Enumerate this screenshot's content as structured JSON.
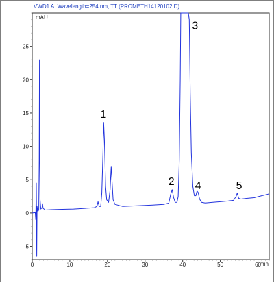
{
  "chart_data": {
    "type": "line",
    "title": "VWD1 A, Wavelength=254 nm, TT (PROMETH14120102.D)",
    "ylabel": "mAU",
    "xlabel": "min",
    "xlim": [
      0,
      63
    ],
    "ylim": [
      -7,
      30
    ],
    "x_ticks": [
      0,
      10,
      20,
      30,
      40,
      50,
      60
    ],
    "y_ticks": [
      -5,
      0,
      5,
      10,
      15,
      20,
      25
    ],
    "grid": false,
    "series": [
      {
        "color": "#2233dd",
        "points": [
          [
            0.0,
            0.0
          ],
          [
            0.8,
            0.05
          ],
          [
            0.95,
            -1.0
          ],
          [
            1.0,
            1.5
          ],
          [
            1.05,
            -5.5
          ],
          [
            1.1,
            4.5
          ],
          [
            1.2,
            -6.5
          ],
          [
            1.3,
            1.0
          ],
          [
            1.45,
            0.3
          ],
          [
            1.6,
            0.3
          ],
          [
            1.75,
            0.5
          ],
          [
            1.85,
            8.0
          ],
          [
            1.93,
            23.0
          ],
          [
            2.0,
            10.0
          ],
          [
            2.1,
            2.0
          ],
          [
            2.3,
            0.6
          ],
          [
            2.6,
            0.8
          ],
          [
            2.75,
            1.4
          ],
          [
            2.9,
            0.7
          ],
          [
            3.5,
            0.45
          ],
          [
            5,
            0.5
          ],
          [
            8,
            0.55
          ],
          [
            11,
            0.6
          ],
          [
            14,
            0.7
          ],
          [
            16.5,
            0.8
          ],
          [
            17.2,
            1.0
          ],
          [
            17.5,
            1.7
          ],
          [
            17.8,
            1.0
          ],
          [
            18.2,
            1.0
          ],
          [
            18.5,
            3.0
          ],
          [
            18.8,
            9.0
          ],
          [
            19.0,
            13.6
          ],
          [
            19.2,
            11.0
          ],
          [
            19.5,
            4.0
          ],
          [
            19.8,
            2.0
          ],
          [
            20.3,
            1.6
          ],
          [
            20.7,
            3.5
          ],
          [
            21.0,
            7.0
          ],
          [
            21.2,
            5.0
          ],
          [
            21.5,
            2.0
          ],
          [
            22.0,
            1.3
          ],
          [
            24,
            1.0
          ],
          [
            28,
            1.1
          ],
          [
            32,
            1.2
          ],
          [
            35,
            1.3
          ],
          [
            36.3,
            1.5
          ],
          [
            36.8,
            2.8
          ],
          [
            37.2,
            3.5
          ],
          [
            37.6,
            2.3
          ],
          [
            38.0,
            1.6
          ],
          [
            38.5,
            1.6
          ],
          [
            38.8,
            2.5
          ],
          [
            39.1,
            8.0
          ],
          [
            39.35,
            20.0
          ],
          [
            39.5,
            30.5
          ],
          [
            40.5,
            31.0
          ],
          [
            41.5,
            31.0
          ],
          [
            41.75,
            29.0
          ],
          [
            42.0,
            18.0
          ],
          [
            42.3,
            9.0
          ],
          [
            42.7,
            4.0
          ],
          [
            43.1,
            2.6
          ],
          [
            43.5,
            2.6
          ],
          [
            43.8,
            3.3
          ],
          [
            44.1,
            3.1
          ],
          [
            44.5,
            2.1
          ],
          [
            45.0,
            1.6
          ],
          [
            46,
            1.5
          ],
          [
            48,
            1.6
          ],
          [
            50,
            1.7
          ],
          [
            52,
            1.8
          ],
          [
            53.5,
            1.9
          ],
          [
            54.2,
            2.5
          ],
          [
            54.5,
            3.0
          ],
          [
            54.9,
            2.2
          ],
          [
            55.5,
            2.1
          ],
          [
            57,
            2.2
          ],
          [
            59,
            2.3
          ],
          [
            61,
            2.6
          ],
          [
            62.5,
            2.8
          ],
          [
            63,
            2.9
          ]
        ]
      }
    ],
    "annotations": [
      {
        "text": "1",
        "x": 18.9,
        "y": 14.3
      },
      {
        "text": "2",
        "x": 37.0,
        "y": 4.2
      },
      {
        "text": "3",
        "x": 43.3,
        "y": 27.6
      },
      {
        "text": "4",
        "x": 44.1,
        "y": 3.6
      },
      {
        "text": "5",
        "x": 55.0,
        "y": 3.6
      }
    ]
  }
}
